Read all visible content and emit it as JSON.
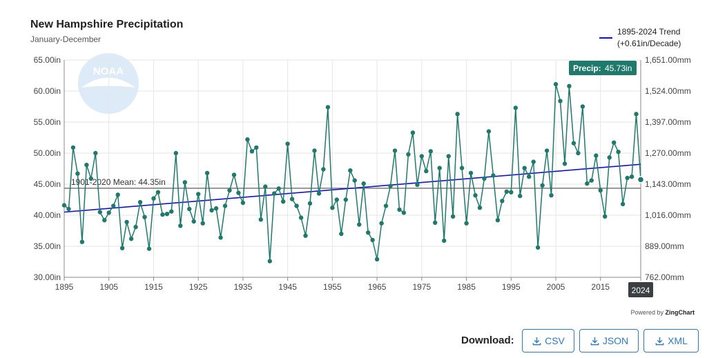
{
  "header": {
    "title": "New Hampshire Precipitation",
    "subtitle": "January-December"
  },
  "legend": {
    "trend_label_line1": "1895-2024 Trend",
    "trend_label_line2": "(+0.61in/Decade)"
  },
  "tooltip": {
    "label": "Precip:",
    "value": "45.73in",
    "x_label": "2024"
  },
  "footer": {
    "powered_prefix": "Powered by",
    "powered_brand": "ZingChart",
    "download_label": "Download:",
    "buttons": [
      "CSV",
      "JSON",
      "XML"
    ]
  },
  "colors": {
    "series": "#1f7a6b",
    "trend": "#1010d8",
    "mean": "#777777",
    "tooltip_bg": "#1f7a6b",
    "button": "#2a7bd0"
  },
  "chart_data": {
    "type": "line",
    "title": "New Hampshire Precipitation",
    "subtitle": "January-December",
    "xlabel": "",
    "ylabel": "",
    "xlim": [
      1895,
      2024
    ],
    "ylim": [
      30,
      65
    ],
    "x_ticks": [
      "1895",
      "1905",
      "1915",
      "1925",
      "1935",
      "1945",
      "1955",
      "1965",
      "1975",
      "1985",
      "1995",
      "2005",
      "2015",
      "2024"
    ],
    "y_ticks_left": [
      "30.00in",
      "35.00in",
      "40.00in",
      "45.00in",
      "50.00in",
      "55.00in",
      "60.00in",
      "65.00in"
    ],
    "y_ticks_right": [
      "762.00mm",
      "889.00mm",
      "1,016.00mm",
      "1,143.00mm",
      "1,270.00mm",
      "1,397.00mm",
      "1,524.00mm",
      "1,651.00mm"
    ],
    "start_year": 1895,
    "values": [
      41.6,
      41.0,
      50.9,
      46.7,
      35.7,
      48.1,
      45.9,
      50.0,
      40.5,
      39.2,
      40.4,
      41.5,
      43.3,
      34.7,
      38.9,
      36.2,
      38.1,
      42.1,
      39.7,
      34.6,
      42.7,
      43.7,
      40.1,
      40.2,
      40.6,
      50.0,
      38.3,
      45.3,
      41.0,
      39.0,
      43.4,
      38.7,
      46.8,
      40.8,
      41.1,
      36.4,
      41.5,
      44.0,
      46.5,
      43.6,
      42.0,
      52.2,
      50.3,
      50.9,
      39.3,
      44.6,
      32.6,
      43.5,
      44.3,
      42.2,
      51.5,
      42.6,
      41.5,
      39.6,
      36.7,
      41.9,
      50.4,
      43.5,
      47.4,
      57.4,
      41.2,
      42.5,
      37.0,
      42.5,
      47.2,
      45.6,
      38.5,
      45.1,
      37.2,
      36.0,
      32.9,
      38.7,
      41.5,
      44.7,
      50.4,
      40.9,
      40.4,
      49.8,
      53.3,
      44.9,
      49.5,
      47.1,
      50.3,
      38.8,
      47.6,
      35.9,
      49.5,
      39.8,
      56.3,
      47.6,
      38.7,
      46.8,
      43.2,
      41.2,
      45.9,
      53.5,
      46.4,
      39.2,
      42.3,
      43.8,
      43.7,
      57.3,
      43.1,
      47.6,
      46.2,
      48.6,
      34.8,
      44.8,
      50.4,
      43.2,
      61.1,
      58.4,
      48.3,
      60.8,
      51.6,
      50.0,
      57.5,
      45.1,
      45.6,
      49.6,
      44.0,
      39.8,
      49.3,
      51.7,
      50.2,
      41.8,
      46.0,
      46.2,
      56.3,
      45.73
    ],
    "series": [
      {
        "name": "Precipitation",
        "color": "#1f7a6b"
      },
      {
        "name": "1895-2024 Trend (+0.61in/Decade)",
        "type": "trend",
        "start": 40.5,
        "end": 48.2,
        "color": "#1010d8"
      },
      {
        "name": "1901-2020 Mean: 44.35in",
        "type": "mean",
        "value": 44.35,
        "color": "#777777"
      }
    ],
    "annotations": [
      "1901-2020 Mean: 44.35in",
      "Precip: 45.73in"
    ],
    "legend_position": "top-right",
    "grid": true
  }
}
